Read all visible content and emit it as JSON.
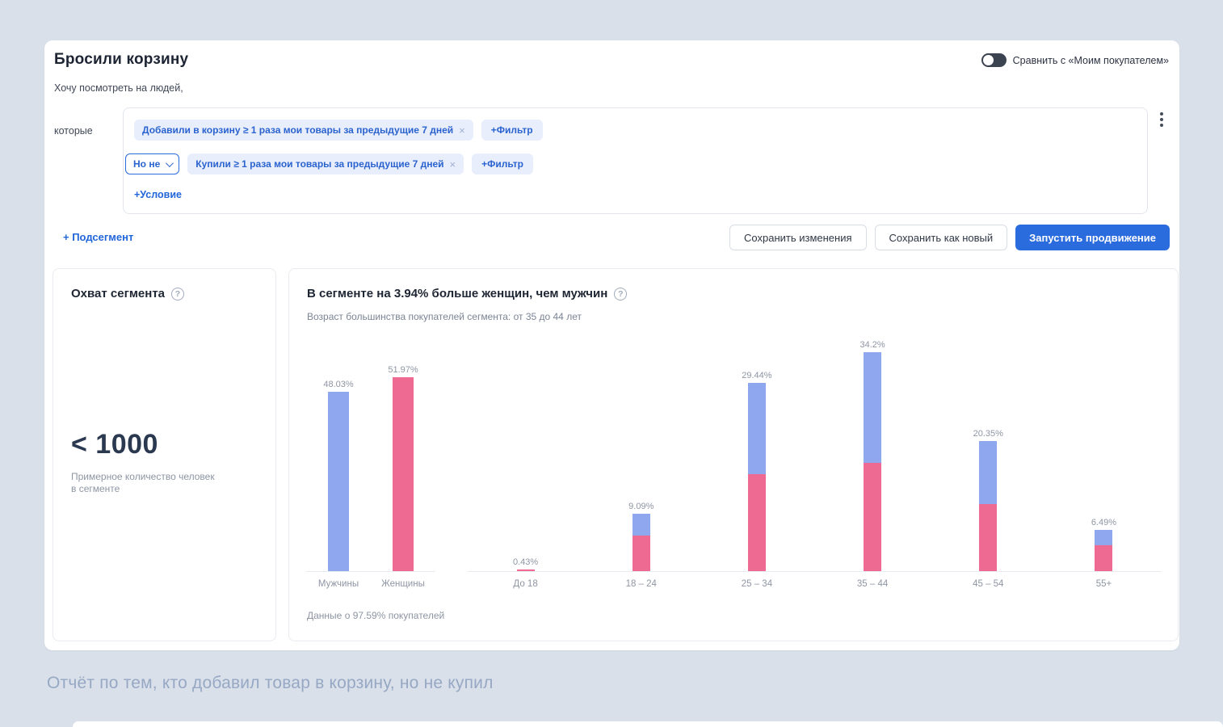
{
  "page": {
    "title": "Бросили корзину",
    "caption": "Отчёт по тем, кто добавил товар в корзину, но не купил"
  },
  "header": {
    "compare_toggle_label": "Сравнить с «Моим покупателем»",
    "toggle_state": "off"
  },
  "segment_builder": {
    "intro": "Хочу посмотреть на людей,",
    "who_label": "которые",
    "rows": [
      {
        "chip": "Добавили в корзину ≥ 1 раза мои товары за предыдущие 7 дней",
        "close": "×",
        "add_filter": "+Фильтр"
      },
      {
        "prefix": "Но не",
        "chip": "Купили ≥ 1 раза мои товары за предыдущие 7 дней",
        "close": "×",
        "add_filter": "+Фильтр"
      }
    ],
    "add_condition": "+Условие"
  },
  "actions": {
    "add_subsegment": "+ Подсегмент",
    "save_changes": "Сохранить изменения",
    "save_as_new": "Сохранить как новый",
    "launch_promotion": "Запустить продвижение"
  },
  "reach_card": {
    "title": "Охват сегмента",
    "value": "< 1000",
    "description_line1": "Примерное количество человек",
    "description_line2": "в сегменте"
  },
  "chart_card": {
    "title": "В сегменте на 3.94% больше женщин, чем мужчин",
    "subtitle": "Возраст большинства покупателей сегмента: от 35 до 44 лет",
    "footnote": "Данные о 97.59% покупателей"
  },
  "chart_data": {
    "type": "bar",
    "title": "В сегменте на 3.94% больше женщин, чем мужчин",
    "legend": "none",
    "grid": false,
    "ylim": [
      0,
      52
    ],
    "colors": {
      "men": "#8fa7ef",
      "women": "#ee6a93"
    },
    "gender": {
      "categories": [
        "Мужчины",
        "Женщины"
      ],
      "values": [
        48.03,
        51.97
      ],
      "labels": [
        "48.03%",
        "51.97%"
      ]
    },
    "age": {
      "categories": [
        "До 18",
        "18 – 24",
        "25 – 34",
        "35 – 44",
        "45 – 54",
        "55+"
      ],
      "totals": [
        0.43,
        9.09,
        29.44,
        34.2,
        20.35,
        6.49
      ],
      "labels": [
        "0.43%",
        "9.09%",
        "29.44%",
        "34.2%",
        "20.35%",
        "6.49%"
      ],
      "women_share": [
        0.43,
        5.6,
        15.2,
        17.0,
        10.55,
        4.15
      ],
      "men_share": [
        0,
        3.49,
        14.24,
        17.2,
        9.8,
        2.34
      ]
    }
  }
}
